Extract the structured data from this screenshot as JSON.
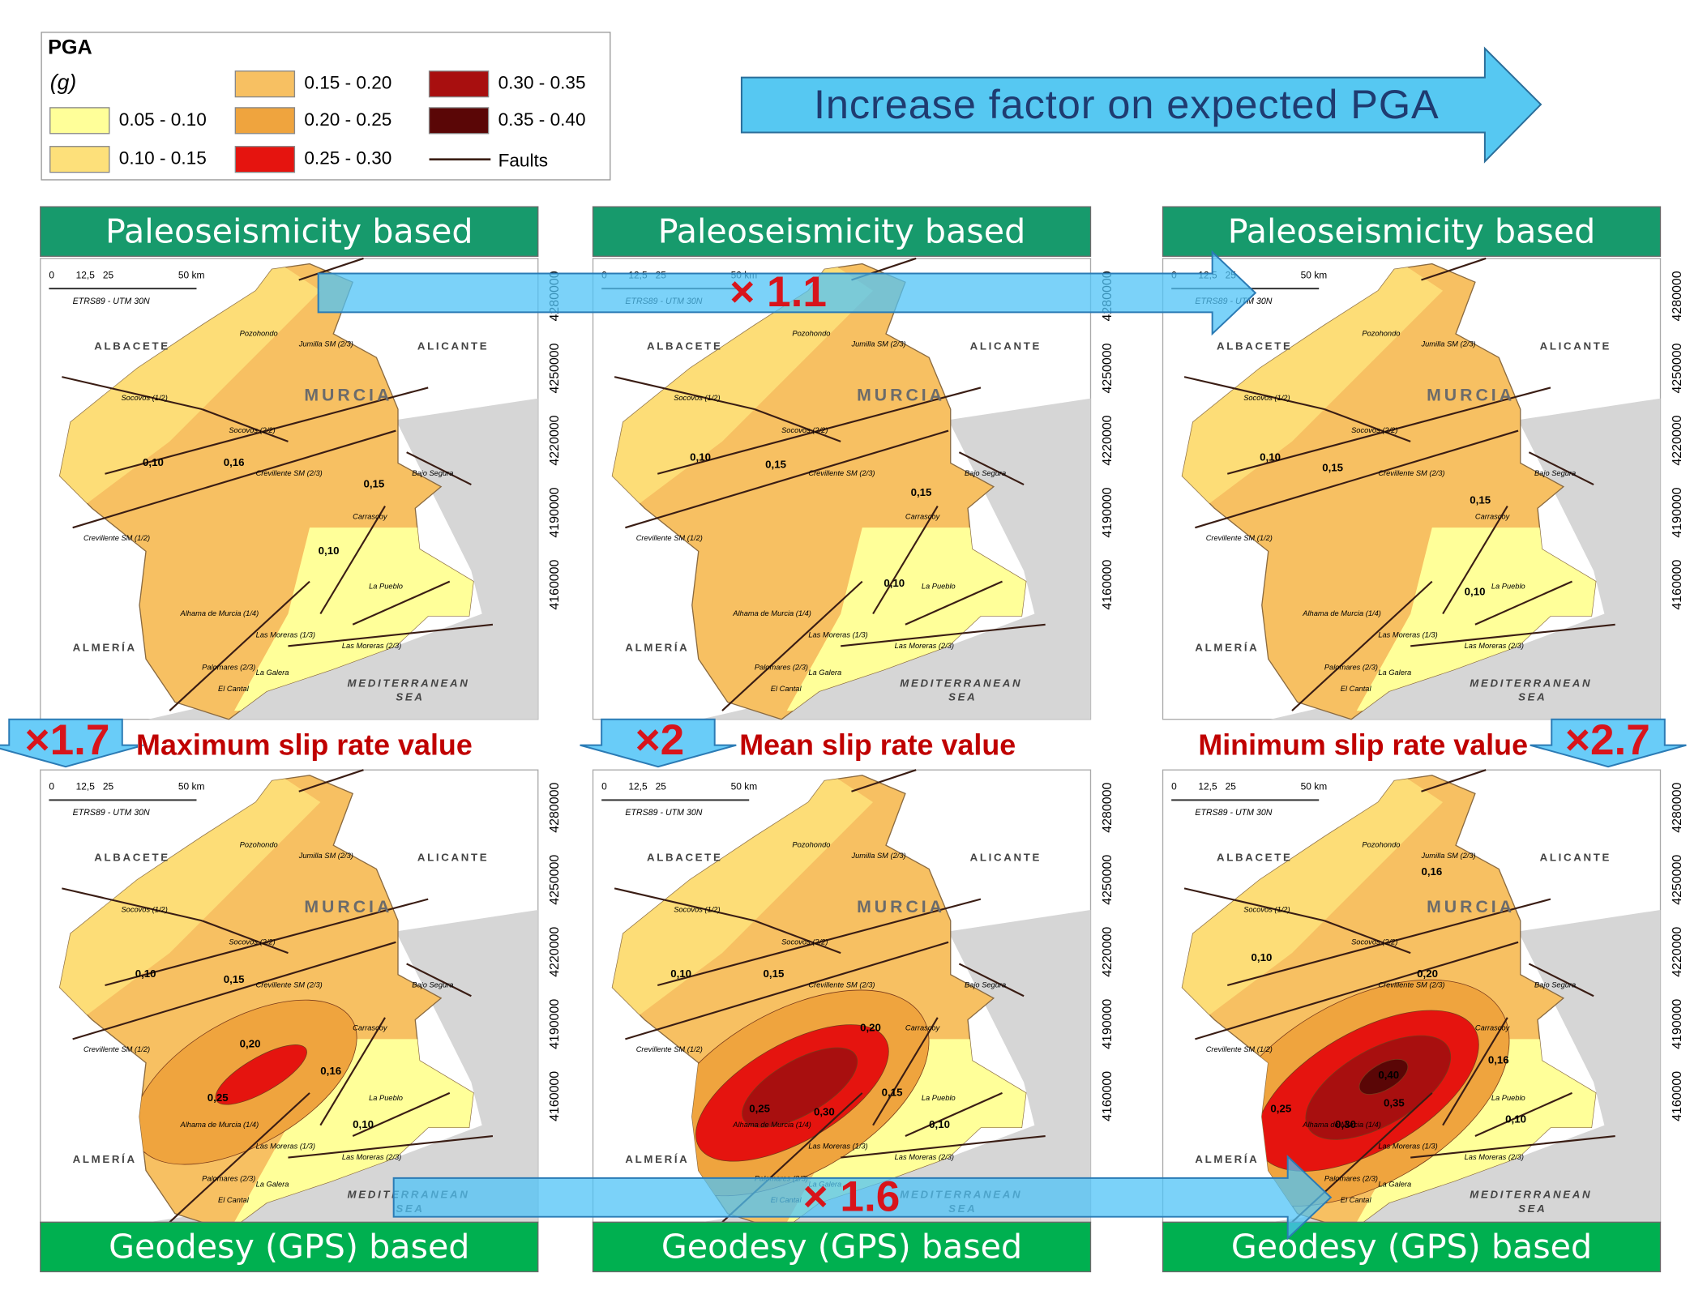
{
  "legend": {
    "title": "PGA",
    "unit": "(g)",
    "items": [
      {
        "label": "0.05 - 0.10",
        "color": "#ffff99"
      },
      {
        "label": "0.10 - 0.15",
        "color": "#fde07a"
      },
      {
        "label": "0.15 - 0.20",
        "color": "#f7c062"
      },
      {
        "label": "0.20 - 0.25",
        "color": "#efa43e"
      },
      {
        "label": "0.25 - 0.30",
        "color": "#e5140f"
      },
      {
        "label": "0.30 - 0.35",
        "color": "#a80f0f"
      },
      {
        "label": "0.35 - 0.40",
        "color": "#5a0606"
      }
    ],
    "faults_label": "Faults"
  },
  "header_arrow": "Increase factor on expected PGA",
  "map_labels": {
    "scale": [
      "0",
      "12,5",
      "25",
      "50 km"
    ],
    "datum": "ETRS89 - UTM 30N",
    "regions": [
      "ALBACETE",
      "ALICANTE",
      "MURCIA",
      "ALMERÍA",
      "MEDITERRANEAN",
      "SEA"
    ],
    "northings": [
      "4280000",
      "4250000",
      "4220000",
      "4190000",
      "4160000"
    ],
    "faults": [
      "Pozohondo",
      "Jumilla SM (2/3)",
      "Socovos (1/2)",
      "Socovos (2/2)",
      "Crevillente SM (2/3)",
      "Crevillente SM (1/2)",
      "Carrascoy",
      "La Pueblo",
      "Las Moreras (1/3)",
      "Las Moreras (2/3)",
      "Palomares (2/3)",
      "Alhama de Murcia (1/4)",
      "Bajo Segura",
      "El Cantal",
      "La Galera"
    ]
  },
  "panels": [
    {
      "header": "Paleoseismicity based",
      "contours": [
        "0,10",
        "0,16",
        "0,15",
        "0,10"
      ]
    },
    {
      "header": "Paleoseismicity based",
      "contours": [
        "0,10",
        "0,15",
        "0,15",
        "0,10"
      ]
    },
    {
      "header": "Paleoseismicity based",
      "contours": [
        "0,10",
        "0,15",
        "0,15",
        "0,10"
      ]
    },
    {
      "header": "Geodesy (GPS) based",
      "contours": [
        "0,10",
        "0,15",
        "0,20",
        "0,25",
        "0,16",
        "0,10"
      ]
    },
    {
      "header": "Geodesy (GPS) based",
      "contours": [
        "0,10",
        "0,15",
        "0,20",
        "0,25",
        "0,30",
        "0,15",
        "0,10"
      ]
    },
    {
      "header": "Geodesy (GPS) based",
      "contours": [
        "0,16",
        "0,10",
        "0,20",
        "0,16",
        "0,40",
        "0,35",
        "0,30",
        "0,25",
        "0,10"
      ]
    }
  ],
  "slip_labels": [
    "Maximum slip rate value",
    "Mean slip rate value",
    "Minimum slip rate value"
  ],
  "factors": {
    "top": "× 1.1",
    "bottom": "× 1.6",
    "left": "×1.7",
    "middle": "×2",
    "right": "×2.7"
  }
}
